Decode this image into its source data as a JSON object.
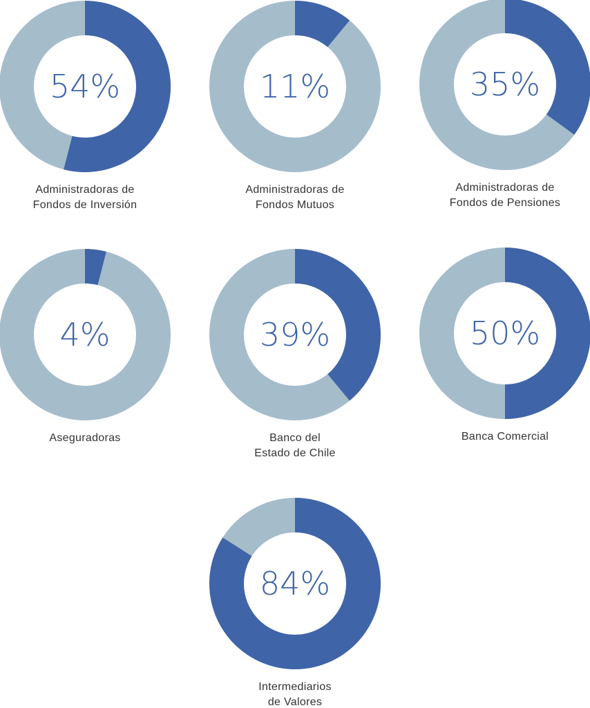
{
  "colors": {
    "highlight": "#3f64a8",
    "remainder": "#a5bccb",
    "center": "#ffffff",
    "label": "#333333",
    "percent_text": "#3f64a8"
  },
  "chart_data": [
    {
      "type": "pie",
      "style": "donut",
      "title": "",
      "label_lines": [
        "Administradoras de",
        "Fondos de Inversión"
      ],
      "value": 54,
      "value_label": "54%"
    },
    {
      "type": "pie",
      "style": "donut",
      "title": "",
      "label_lines": [
        "Administradoras de",
        "Fondos Mutuos"
      ],
      "value": 11,
      "value_label": "11%"
    },
    {
      "type": "pie",
      "style": "donut",
      "title": "",
      "label_lines": [
        "Administradoras de",
        "Fondos de Pensiones"
      ],
      "value": 35,
      "value_label": "35%"
    },
    {
      "type": "pie",
      "style": "donut",
      "title": "",
      "label_lines": [
        "Aseguradoras"
      ],
      "value": 4,
      "value_label": "4%"
    },
    {
      "type": "pie",
      "style": "donut",
      "title": "",
      "label_lines": [
        "Banco del",
        "Estado de Chile"
      ],
      "value": 39,
      "value_label": "39%"
    },
    {
      "type": "pie",
      "style": "donut",
      "title": "",
      "label_lines": [
        "Banca Comercial"
      ],
      "value": 50,
      "value_label": "50%"
    },
    {
      "type": "pie",
      "style": "donut",
      "title": "",
      "label_lines": [
        "Intermediarios",
        "de Valores"
      ],
      "value": 84,
      "value_label": "84%"
    }
  ]
}
